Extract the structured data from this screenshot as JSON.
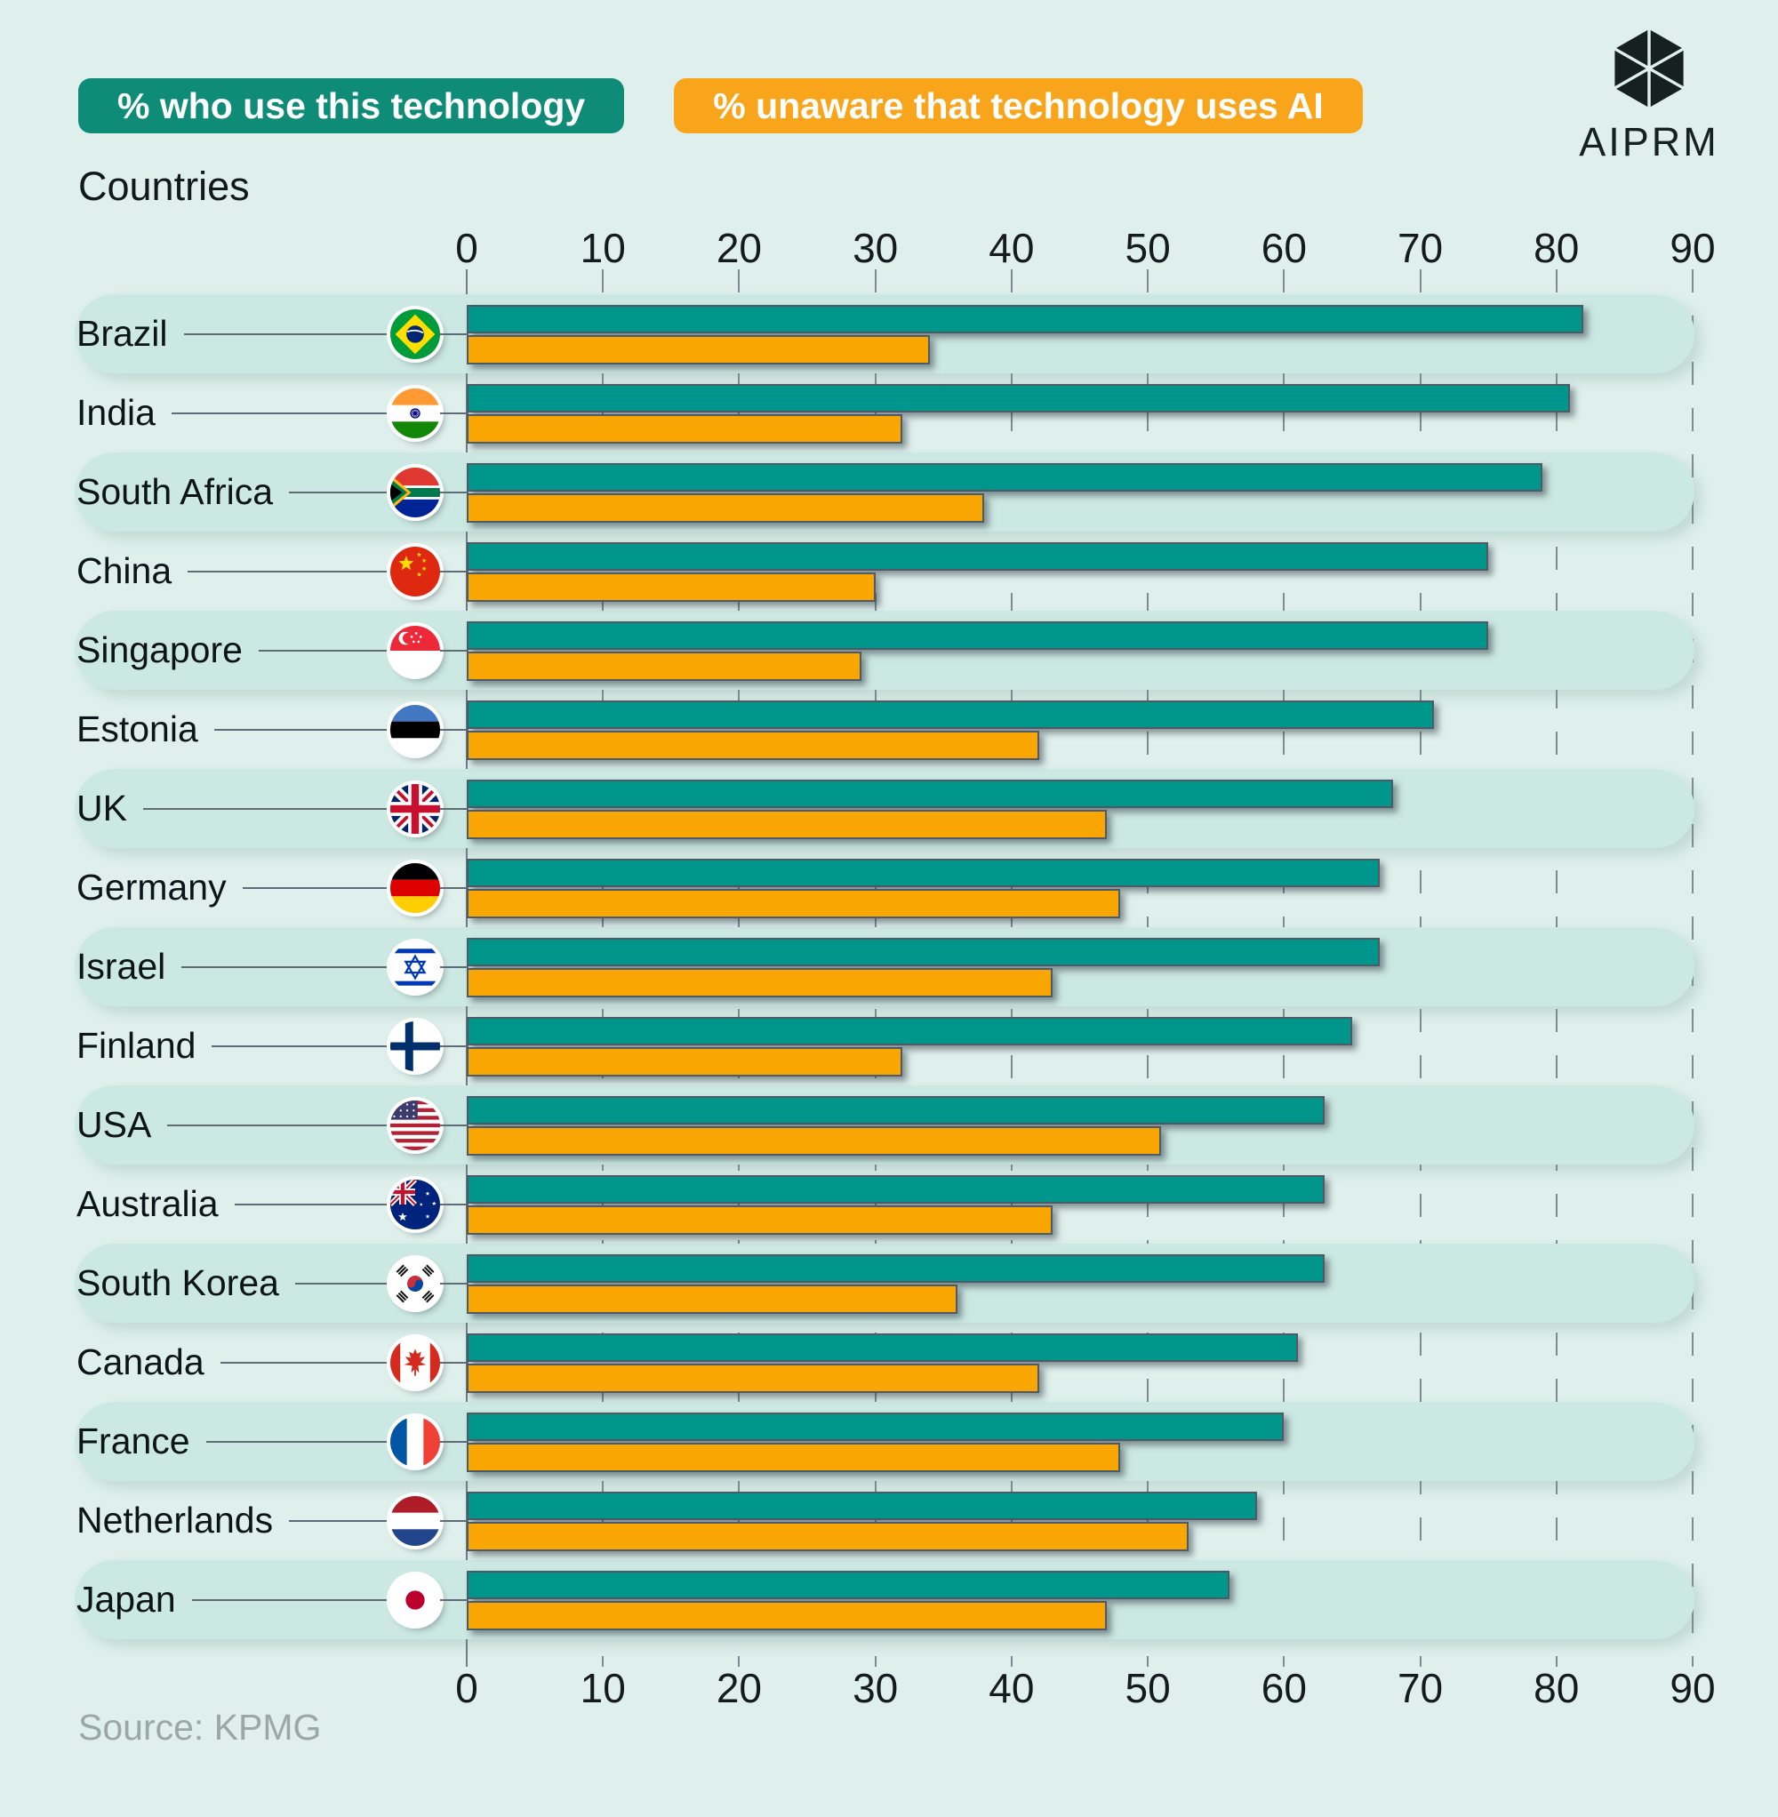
{
  "legend": {
    "use_label": "% who use this technology",
    "unaware_label": "% unaware that technology uses AI"
  },
  "logo": {
    "text": "AIPRM",
    "icon": "aiprm-hexagon-logo-icon"
  },
  "axis_title": "Countries",
  "source": "Source: KPMG",
  "colors": {
    "background": "#DFF0EC",
    "row_band": "#CCE8E2",
    "use_bar": "#00968B",
    "unaware_bar": "#F9A602",
    "legend_use_chip": "#0F8C77",
    "legend_unaware_chip": "#F9A51B",
    "bar_border": "#4E5A66",
    "source_text": "#9CA7A4"
  },
  "chart_data": {
    "type": "bar",
    "orientation": "horizontal",
    "title": "",
    "xlabel": "",
    "ylabel": "Countries",
    "xlim": [
      0,
      90
    ],
    "x_ticks": [
      0,
      10,
      20,
      30,
      40,
      50,
      60,
      70,
      80,
      90
    ],
    "grid": "vertical-dashed",
    "legend_position": "top",
    "series_names": [
      "% who use this technology",
      "% unaware that technology uses AI"
    ],
    "rows": [
      {
        "country": "Brazil",
        "flag": "brazil",
        "use": 82,
        "unaware": 34
      },
      {
        "country": "India",
        "flag": "india",
        "use": 81,
        "unaware": 32
      },
      {
        "country": "South Africa",
        "flag": "south-africa",
        "use": 79,
        "unaware": 38
      },
      {
        "country": "China",
        "flag": "china",
        "use": 75,
        "unaware": 30
      },
      {
        "country": "Singapore",
        "flag": "singapore",
        "use": 75,
        "unaware": 29
      },
      {
        "country": "Estonia",
        "flag": "estonia",
        "use": 71,
        "unaware": 42
      },
      {
        "country": "UK",
        "flag": "uk",
        "use": 68,
        "unaware": 47
      },
      {
        "country": "Germany",
        "flag": "germany",
        "use": 67,
        "unaware": 48
      },
      {
        "country": "Israel",
        "flag": "israel",
        "use": 67,
        "unaware": 43
      },
      {
        "country": "Finland",
        "flag": "finland",
        "use": 65,
        "unaware": 32
      },
      {
        "country": "USA",
        "flag": "usa",
        "use": 63,
        "unaware": 51
      },
      {
        "country": "Australia",
        "flag": "australia",
        "use": 63,
        "unaware": 43
      },
      {
        "country": "South Korea",
        "flag": "south-korea",
        "use": 63,
        "unaware": 36
      },
      {
        "country": "Canada",
        "flag": "canada",
        "use": 61,
        "unaware": 42
      },
      {
        "country": "France",
        "flag": "france",
        "use": 60,
        "unaware": 48
      },
      {
        "country": "Netherlands",
        "flag": "netherlands",
        "use": 58,
        "unaware": 53
      },
      {
        "country": "Japan",
        "flag": "japan",
        "use": 56,
        "unaware": 47
      }
    ]
  }
}
